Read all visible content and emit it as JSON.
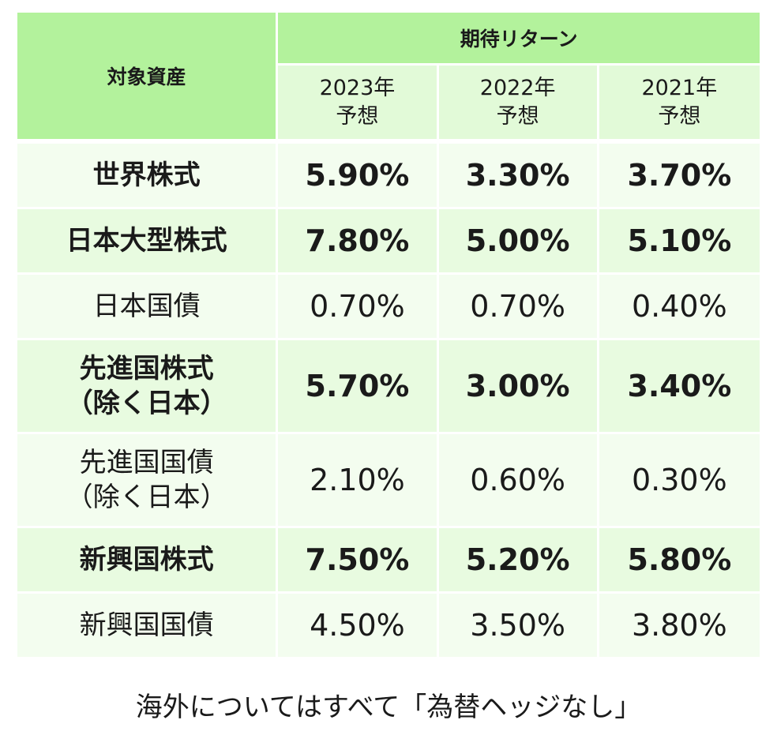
{
  "chart_data": {
    "type": "table",
    "header": {
      "asset_label": "対象資産",
      "group_label": "期待リターン",
      "years": [
        {
          "line1": "2023年",
          "line2": "予想"
        },
        {
          "line1": "2022年",
          "line2": "予想"
        },
        {
          "line1": "2021年",
          "line2": "予想"
        }
      ]
    },
    "rows": [
      {
        "asset": [
          "世界株式"
        ],
        "bold": true,
        "values": [
          "5.90%",
          "3.30%",
          "3.70%"
        ]
      },
      {
        "asset": [
          "日本大型株式"
        ],
        "bold": true,
        "values": [
          "7.80%",
          "5.00%",
          "5.10%"
        ]
      },
      {
        "asset": [
          "日本国債"
        ],
        "bold": false,
        "values": [
          "0.70%",
          "0.70%",
          "0.40%"
        ]
      },
      {
        "asset": [
          "先進国株式",
          "（除く日本）"
        ],
        "bold": true,
        "values": [
          "5.70%",
          "3.00%",
          "3.40%"
        ]
      },
      {
        "asset": [
          "先進国国債",
          "（除く日本）"
        ],
        "bold": false,
        "values": [
          "2.10%",
          "0.60%",
          "0.30%"
        ]
      },
      {
        "asset": [
          "新興国株式"
        ],
        "bold": true,
        "values": [
          "7.50%",
          "5.20%",
          "5.80%"
        ]
      },
      {
        "asset": [
          "新興国国債"
        ],
        "bold": false,
        "values": [
          "4.50%",
          "3.50%",
          "3.80%"
        ]
      }
    ],
    "note": "海外についてはすべて「為替ヘッジなし」"
  },
  "colors": {
    "header_strong": "#b3f29c",
    "header_light": "#e2fad8",
    "row_bold_bg": "#e8fbe0",
    "row_normal_bg": "#f3fdef"
  }
}
